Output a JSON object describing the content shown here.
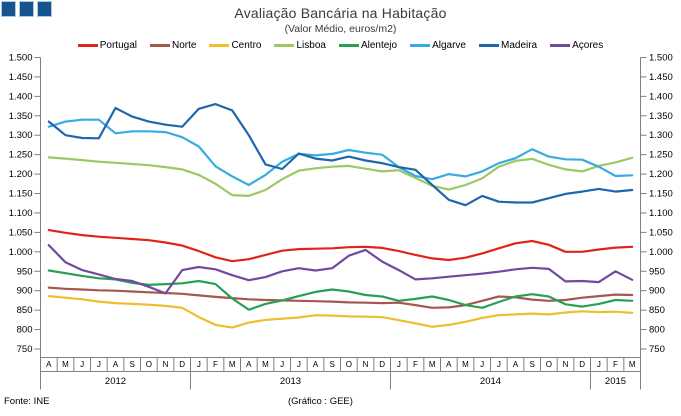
{
  "title": "Avaliação Bancária na Habitação",
  "subtitle": "(Valor Médio, euros/m2)",
  "footer": {
    "source": "Fonte: INE",
    "credit": "(Gráfico : GEE)"
  },
  "chart_data": {
    "type": "line",
    "title": "Avaliação Bancária na Habitação",
    "subtitle": "(Valor Médio, euros/m2)",
    "xlabel": "",
    "ylabel": "euros/m2",
    "ylim": [
      750,
      1500
    ],
    "y_tick_step": 50,
    "grid": false,
    "legend_position": "top",
    "y_axis_both_sides": true,
    "y_tick_labels_top_to_bottom": [
      "1.500",
      "1.450",
      "1.400",
      "1.350",
      "1.300",
      "1.250",
      "1.200",
      "1.150",
      "1.100",
      "1.050",
      "1.000",
      "950",
      "900",
      "850",
      "800",
      "750"
    ],
    "x_months": [
      "A",
      "M",
      "J",
      "J",
      "A",
      "S",
      "O",
      "N",
      "D",
      "J",
      "F",
      "M",
      "A",
      "M",
      "J",
      "J",
      "A",
      "S",
      "O",
      "N",
      "D",
      "J",
      "F",
      "M",
      "A",
      "M",
      "J",
      "J",
      "A",
      "S",
      "O",
      "N",
      "D",
      "J",
      "F",
      "M"
    ],
    "year_groups": [
      {
        "label": "2012",
        "months": 9
      },
      {
        "label": "2013",
        "months": 12
      },
      {
        "label": "2014",
        "months": 12
      },
      {
        "label": "2015",
        "months": 3
      }
    ],
    "series": [
      {
        "name": "Portugal",
        "color": "#E2231A",
        "values": [
          1056,
          1049,
          1043,
          1039,
          1036,
          1033,
          1030,
          1024,
          1016,
          1002,
          986,
          976,
          981,
          992,
          1003,
          1007,
          1008,
          1009,
          1012,
          1013,
          1010,
          1002,
          992,
          983,
          979,
          985,
          996,
          1009,
          1022,
          1028,
          1018,
          1000,
          1000,
          1006,
          1011,
          1013
        ]
      },
      {
        "name": "Norte",
        "color": "#A6574F",
        "values": [
          908,
          905,
          903,
          901,
          900,
          898,
          896,
          894,
          892,
          888,
          884,
          881,
          878,
          876,
          875,
          874,
          873,
          872,
          870,
          869,
          868,
          869,
          863,
          856,
          857,
          863,
          874,
          885,
          883,
          877,
          874,
          876,
          882,
          886,
          890,
          889
        ]
      },
      {
        "name": "Centro",
        "color": "#EFBE2B",
        "values": [
          886,
          882,
          878,
          872,
          868,
          866,
          864,
          861,
          856,
          832,
          812,
          805,
          818,
          825,
          828,
          831,
          837,
          836,
          834,
          833,
          832,
          824,
          816,
          807,
          812,
          820,
          830,
          837,
          839,
          841,
          839,
          844,
          847,
          845,
          846,
          843
        ]
      },
      {
        "name": "Lisboa",
        "color": "#9DC863",
        "values": [
          1243,
          1240,
          1236,
          1232,
          1229,
          1226,
          1223,
          1218,
          1212,
          1198,
          1175,
          1146,
          1144,
          1159,
          1187,
          1209,
          1215,
          1219,
          1221,
          1214,
          1207,
          1210,
          1190,
          1170,
          1160,
          1172,
          1189,
          1219,
          1234,
          1239,
          1224,
          1212,
          1207,
          1221,
          1230,
          1242
        ]
      },
      {
        "name": "Alentejo",
        "color": "#28A053",
        "values": [
          952,
          945,
          938,
          932,
          929,
          920,
          915,
          917,
          919,
          925,
          917,
          880,
          851,
          866,
          875,
          886,
          897,
          903,
          898,
          889,
          885,
          874,
          879,
          885,
          876,
          863,
          856,
          871,
          885,
          891,
          885,
          865,
          859,
          866,
          876,
          874
        ]
      },
      {
        "name": "Algarve",
        "color": "#38ACE2",
        "values": [
          1322,
          1335,
          1340,
          1340,
          1305,
          1310,
          1310,
          1308,
          1295,
          1271,
          1220,
          1194,
          1172,
          1198,
          1232,
          1252,
          1248,
          1252,
          1262,
          1255,
          1250,
          1218,
          1195,
          1187,
          1200,
          1194,
          1207,
          1228,
          1241,
          1264,
          1245,
          1238,
          1237,
          1219,
          1195,
          1197
        ]
      },
      {
        "name": "Madeira",
        "color": "#1F66AC",
        "values": [
          1335,
          1300,
          1293,
          1292,
          1370,
          1348,
          1335,
          1327,
          1322,
          1368,
          1380,
          1364,
          1300,
          1225,
          1213,
          1253,
          1240,
          1235,
          1245,
          1235,
          1228,
          1218,
          1211,
          1172,
          1134,
          1120,
          1144,
          1129,
          1127,
          1127,
          1138,
          1149,
          1155,
          1162,
          1155,
          1159
        ]
      },
      {
        "name": "Açores",
        "color": "#7149A0",
        "values": [
          1017,
          973,
          953,
          942,
          930,
          925,
          910,
          893,
          953,
          961,
          955,
          940,
          927,
          935,
          950,
          958,
          952,
          958,
          990,
          1005,
          975,
          953,
          929,
          932,
          936,
          940,
          944,
          949,
          955,
          959,
          956,
          924,
          925,
          922,
          950,
          928
        ]
      }
    ]
  }
}
